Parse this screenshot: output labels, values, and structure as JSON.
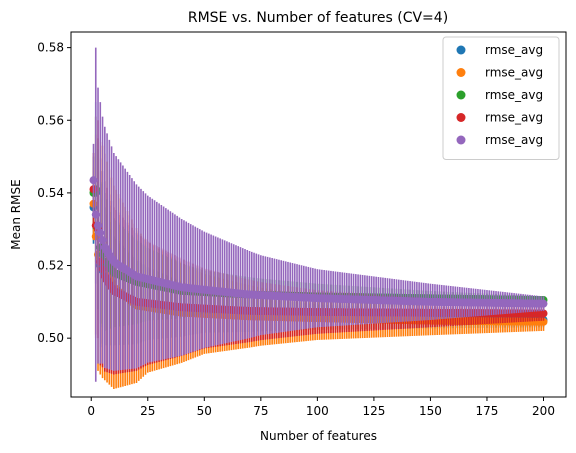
{
  "chart_data": {
    "type": "scatter",
    "title": "RMSE vs. Number of features (CV=4)",
    "xlabel": "Number of features",
    "ylabel": "Mean RMSE",
    "xlim": [
      -8.95,
      209.95
    ],
    "ylim": [
      0.4838,
      0.5843
    ],
    "xticks": [
      0,
      25,
      50,
      75,
      100,
      125,
      150,
      175,
      200
    ],
    "yticks": [
      0.5,
      0.52,
      0.54,
      0.56,
      0.58
    ],
    "ytick_labels": [
      "0.50",
      "0.52",
      "0.54",
      "0.56",
      "0.58"
    ],
    "grid": false,
    "legend_position": "top-right",
    "error_bars": true,
    "n_features": {
      "start": 1,
      "end": 200
    },
    "series": [
      {
        "name": "rmse_avg",
        "color": "#1f77b4",
        "mean_anchors": [
          [
            1,
            0.536
          ],
          [
            2,
            0.54
          ],
          [
            3,
            0.53
          ],
          [
            4,
            0.52
          ],
          [
            6,
            0.517
          ],
          [
            10,
            0.513
          ],
          [
            20,
            0.51
          ],
          [
            40,
            0.508
          ],
          [
            70,
            0.5065
          ],
          [
            100,
            0.5058
          ],
          [
            150,
            0.5052
          ],
          [
            200,
            0.505
          ]
        ],
        "err_anchors": [
          [
            1,
            0.01
          ],
          [
            2,
            0.025
          ],
          [
            3,
            0.025
          ],
          [
            5,
            0.02
          ],
          [
            10,
            0.015
          ],
          [
            25,
            0.01
          ],
          [
            50,
            0.006
          ],
          [
            75,
            0.0045
          ],
          [
            100,
            0.0035
          ],
          [
            150,
            0.0025
          ],
          [
            200,
            0.002
          ]
        ]
      },
      {
        "name": "rmse_avg",
        "color": "#ff7f0e",
        "mean_anchors": [
          [
            1,
            0.537
          ],
          [
            2,
            0.528
          ],
          [
            3,
            0.523
          ],
          [
            5,
            0.521
          ],
          [
            10,
            0.514
          ],
          [
            20,
            0.509
          ],
          [
            40,
            0.507
          ],
          [
            70,
            0.506
          ],
          [
            100,
            0.5055
          ],
          [
            150,
            0.5048
          ],
          [
            200,
            0.5045
          ]
        ],
        "err_anchors": [
          [
            1,
            0.01
          ],
          [
            2,
            0.028
          ],
          [
            3,
            0.032
          ],
          [
            5,
            0.032
          ],
          [
            10,
            0.028
          ],
          [
            25,
            0.018
          ],
          [
            50,
            0.011
          ],
          [
            75,
            0.008
          ],
          [
            100,
            0.006
          ],
          [
            150,
            0.004
          ],
          [
            200,
            0.0025
          ]
        ]
      },
      {
        "name": "rmse_avg",
        "color": "#2ca02c",
        "mean_anchors": [
          [
            1,
            0.54
          ],
          [
            2,
            0.541
          ],
          [
            3,
            0.53
          ],
          [
            4,
            0.525
          ],
          [
            6,
            0.521
          ],
          [
            10,
            0.518
          ],
          [
            20,
            0.5155
          ],
          [
            40,
            0.513
          ],
          [
            70,
            0.512
          ],
          [
            100,
            0.5115
          ],
          [
            150,
            0.511
          ],
          [
            200,
            0.5105
          ]
        ],
        "err_anchors": [
          [
            1,
            0.01
          ],
          [
            2,
            0.02
          ],
          [
            3,
            0.022
          ],
          [
            5,
            0.02
          ],
          [
            10,
            0.015
          ],
          [
            25,
            0.01
          ],
          [
            50,
            0.006
          ],
          [
            75,
            0.0045
          ],
          [
            100,
            0.0035
          ],
          [
            150,
            0.002
          ],
          [
            200,
            0.001
          ]
        ]
      },
      {
        "name": "rmse_avg",
        "color": "#d62728",
        "mean_anchors": [
          [
            1,
            0.541
          ],
          [
            2,
            0.531
          ],
          [
            3,
            0.53
          ],
          [
            4,
            0.521
          ],
          [
            6,
            0.517
          ],
          [
            10,
            0.513
          ],
          [
            20,
            0.51
          ],
          [
            40,
            0.5085
          ],
          [
            70,
            0.5075
          ],
          [
            100,
            0.5072
          ],
          [
            150,
            0.507
          ],
          [
            200,
            0.5068
          ]
        ],
        "err_anchors": [
          [
            1,
            0.01
          ],
          [
            2,
            0.03
          ],
          [
            3,
            0.03
          ],
          [
            5,
            0.027
          ],
          [
            10,
            0.023
          ],
          [
            25,
            0.017
          ],
          [
            50,
            0.011
          ],
          [
            75,
            0.008
          ],
          [
            100,
            0.006
          ],
          [
            150,
            0.004
          ],
          [
            200,
            0.002
          ]
        ]
      },
      {
        "name": "rmse_avg",
        "color": "#9467bd",
        "mean_anchors": [
          [
            1,
            0.5435
          ],
          [
            2,
            0.534
          ],
          [
            3,
            0.531
          ],
          [
            4,
            0.529
          ],
          [
            6,
            0.525
          ],
          [
            10,
            0.521
          ],
          [
            20,
            0.517
          ],
          [
            40,
            0.514
          ],
          [
            70,
            0.512
          ],
          [
            100,
            0.511
          ],
          [
            150,
            0.51
          ],
          [
            200,
            0.5095
          ]
        ],
        "err_anchors": [
          [
            1,
            0.01
          ],
          [
            2,
            0.046
          ],
          [
            3,
            0.038
          ],
          [
            5,
            0.034
          ],
          [
            10,
            0.03
          ],
          [
            25,
            0.023
          ],
          [
            50,
            0.016
          ],
          [
            75,
            0.011
          ],
          [
            100,
            0.008
          ],
          [
            150,
            0.005
          ],
          [
            200,
            0.002
          ]
        ]
      }
    ]
  }
}
